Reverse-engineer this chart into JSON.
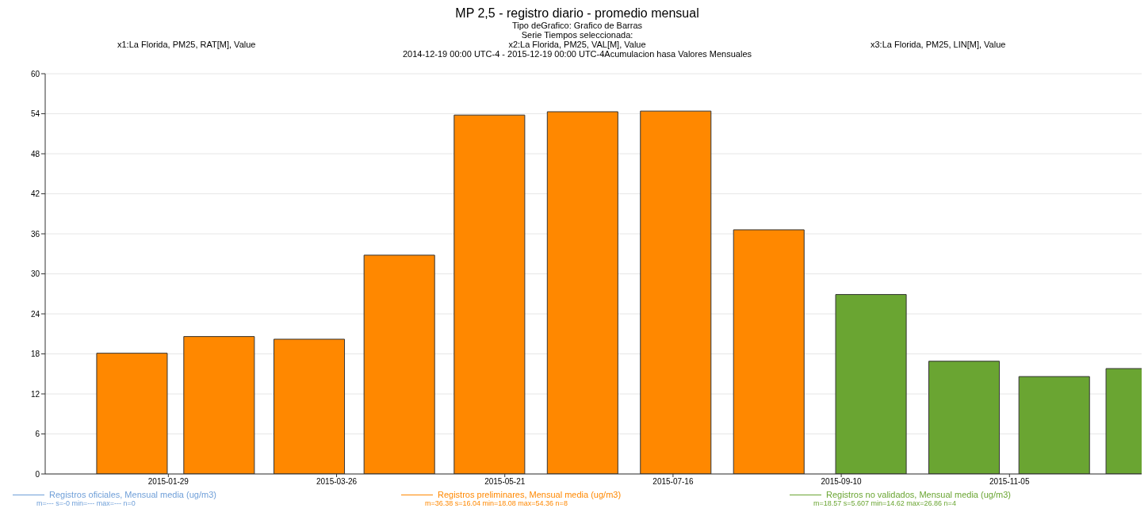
{
  "chart_data": {
    "type": "bar",
    "title": "MP 2,5 - registro diario - promedio mensual",
    "subtitle": "Tipo deGrafico: Grafico de Barras\nSerie Tiempos seleccionada:\nx2:La Florida, PM25, VAL[M], Value\n2014-12-19 00:00 UTC-4 - 2015-12-19 00:00 UTC-4Acumulacion hasa Valores Mensuales",
    "annotations": [
      "x1:La Florida, PM25, RAT[M], Value",
      "x3:La Florida, PM25, LIN[M], Value",
      "m=--- s=-0 min=--- max=--- n=0",
      "m=36.38 s=16.04 min=18.08 max=54.36 n=8",
      "m=18.57 s=5.607 min=14.62 max=26.86 n=4"
    ],
    "series": [
      {
        "name": "Registros oficiales, Mensual media (ug/m3)",
        "color": "#6f9fd8"
      },
      {
        "name": "Registros preliminares, Mensual media (ug/m3)",
        "color": "#ff8800",
        "x": [
          "2015-01-17",
          "2015-02-15",
          "2015-03-17",
          "2015-04-16",
          "2015-05-16",
          "2015-06-16",
          "2015-07-17",
          "2015-08-17"
        ],
        "values": [
          18.1,
          20.6,
          20.2,
          32.8,
          53.8,
          54.3,
          54.4,
          36.6
        ]
      },
      {
        "name": "Registros no validados, Mensual media (ug/m3)",
        "color": "#6aa532",
        "x": [
          "2015-09-20",
          "2015-10-21",
          "2015-11-20",
          "2015-12-19"
        ],
        "values": [
          26.9,
          16.9,
          14.6,
          15.8
        ]
      }
    ],
    "xlim": [
      "2014-12-19",
      "2015-12-19"
    ],
    "xticks": [
      "2015-01-29",
      "2015-03-26",
      "2015-05-21",
      "2015-07-16",
      "2015-09-10",
      "2015-11-05"
    ],
    "ylim": [
      0,
      60
    ],
    "yticks": [
      0,
      6,
      12,
      18,
      24,
      30,
      36,
      42,
      48,
      54,
      60
    ],
    "grid": "y",
    "legend": "bottom"
  }
}
